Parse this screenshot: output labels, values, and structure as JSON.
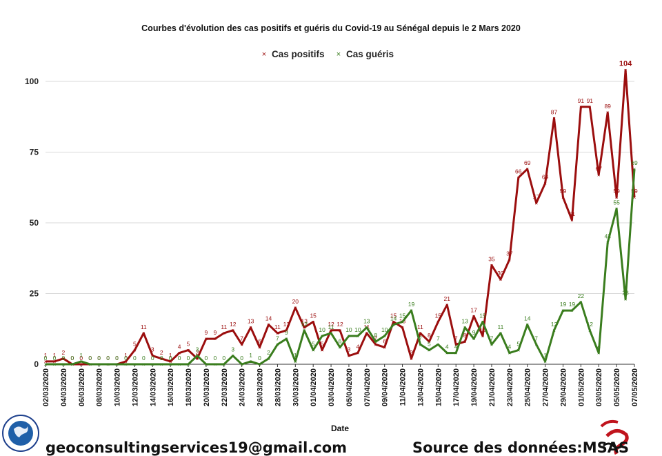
{
  "chart_data": {
    "type": "line",
    "title": "Courbes d'évolution des cas positifs et guéris du Covid-19 au Sénégal depuis le 2 Mars 2020",
    "xlabel": "Date",
    "ylabel": "",
    "ylim": [
      0,
      100
    ],
    "yticks": [
      0,
      25,
      50,
      75,
      100
    ],
    "grid": "horizontal",
    "legend_position": "top-center",
    "x": [
      "02/03/2020",
      "03/03/2020",
      "04/03/2020",
      "05/03/2020",
      "06/03/2020",
      "07/03/2020",
      "08/03/2020",
      "09/03/2020",
      "10/03/2020",
      "11/03/2020",
      "12/03/2020",
      "13/03/2020",
      "14/03/2020",
      "15/03/2020",
      "16/03/2020",
      "17/03/2020",
      "18/03/2020",
      "19/03/2020",
      "20/03/2020",
      "21/03/2020",
      "22/03/2020",
      "23/03/2020",
      "24/03/2020",
      "25/03/2020",
      "26/03/2020",
      "27/03/2020",
      "28/03/2020",
      "29/03/2020",
      "30/03/2020",
      "31/03/2020",
      "01/04/2020",
      "02/04/2020",
      "03/04/2020",
      "04/04/2020",
      "05/04/2020",
      "06/04/2020",
      "07/04/2020",
      "08/04/2020",
      "09/04/2020",
      "10/04/2020",
      "11/04/2020",
      "12/04/2020",
      "13/04/2020",
      "14/04/2020",
      "15/04/2020",
      "16/04/2020",
      "17/04/2020",
      "18/04/2020",
      "19/04/2020",
      "20/04/2020",
      "21/04/2020",
      "22/04/2020",
      "23/04/2020",
      "24/04/2020",
      "25/04/2020",
      "26/04/2020",
      "27/04/2020",
      "28/04/2020",
      "29/04/2020",
      "30/04/2020",
      "01/05/2020",
      "02/05/2020",
      "03/05/2020",
      "04/05/2020",
      "05/05/2020",
      "06/05/2020",
      "07/05/2020"
    ],
    "xtick_labels": [
      "02/03/2020",
      "04/03/2020",
      "06/03/2020",
      "08/03/2020",
      "10/03/2020",
      "12/03/2020",
      "14/03/2020",
      "16/03/2020",
      "18/03/2020",
      "20/03/2020",
      "22/03/2020",
      "24/03/2020",
      "26/03/2020",
      "28/03/2020",
      "30/03/2020",
      "01/04/2020",
      "03/04/2020",
      "05/04/2020",
      "07/04/2020",
      "09/04/2020",
      "11/04/2020",
      "13/04/2020",
      "15/04/2020",
      "17/04/2020",
      "19/04/2020",
      "21/04/2020",
      "23/04/2020",
      "25/04/2020",
      "27/04/2020",
      "29/04/2020",
      "01/05/2020",
      "03/05/2020",
      "05/05/2020",
      "07/05/2020"
    ],
    "series": [
      {
        "name": "Cas positifs",
        "color": "#9b0e0e",
        "values": [
          1,
          1,
          2,
          0,
          0,
          0,
          0,
          0,
          0,
          1,
          5,
          11,
          3,
          2,
          1,
          4,
          5,
          2,
          9,
          9,
          11,
          12,
          7,
          13,
          6,
          14,
          11,
          12,
          20,
          13,
          15,
          5,
          12,
          12,
          3,
          4,
          11,
          7,
          6,
          15,
          13,
          2,
          11,
          8,
          15,
          21,
          7,
          8,
          17,
          10,
          35,
          30,
          37,
          66,
          69,
          57,
          64,
          87,
          59,
          51,
          91,
          91,
          67,
          89,
          59,
          104,
          59
        ]
      },
      {
        "name": "Cas guéris",
        "color": "#3a7d1e",
        "values": [
          0,
          0,
          0,
          0,
          1,
          0,
          0,
          0,
          0,
          0,
          0,
          0,
          0,
          0,
          0,
          0,
          0,
          3,
          0,
          0,
          0,
          3,
          0,
          1,
          0,
          2,
          7,
          9,
          1,
          12,
          5,
          10,
          11,
          6,
          10,
          10,
          13,
          8,
          10,
          14,
          15,
          19,
          7,
          5,
          7,
          4,
          4,
          13,
          9,
          15,
          7,
          11,
          4,
          5,
          14,
          7,
          1,
          12,
          19,
          19,
          22,
          12,
          4,
          43,
          55,
          23,
          69
        ]
      }
    ]
  },
  "footer": {
    "email": "geoconsultingservices19@gmail.com",
    "source": "Source des données:MSAS"
  },
  "logo_text": "GEOCONSULTING SERVICES"
}
